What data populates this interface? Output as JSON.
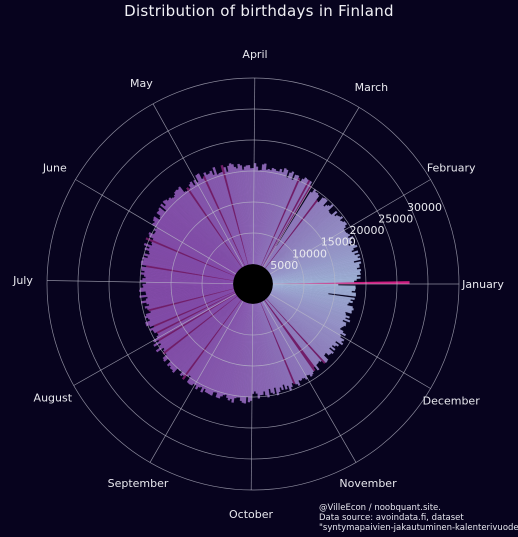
{
  "chart_data": {
    "type": "polar-bar",
    "title": "Distribution of birthdays in Finland",
    "radial_ticks": [
      5000,
      10000,
      15000,
      20000,
      25000,
      30000
    ],
    "rlim": [
      0,
      30000
    ],
    "months": [
      "January",
      "February",
      "March",
      "April",
      "May",
      "June",
      "July",
      "August",
      "September",
      "October",
      "November",
      "December"
    ],
    "direction": "counter-clockwise, January at 0°",
    "grid": true,
    "monthly_typical_count": [
      14000,
      14200,
      15500,
      16000,
      15800,
      14800,
      14500,
      15300,
      15800,
      14400,
      13600,
      13000
    ],
    "notable_days": [
      {
        "day": "January 1",
        "count": 22000
      },
      {
        "day": "December 31",
        "count": 10500
      },
      {
        "day": "December 24",
        "count": 9000
      },
      {
        "day": "February 29",
        "count": 4000
      }
    ],
    "colors": {
      "background": "#07031e",
      "grid": "#b9b9c8",
      "bar_early_year": "#a7bde0",
      "bar_mid_year": "#8a4fb0",
      "bar_highlight": "#7a1f6e",
      "january_first": "#e0208a"
    }
  },
  "credit": {
    "line1": "@VilleEcon / noobquant.site.",
    "line2": "Data source: avoindata.fi, dataset",
    "line3": "\"syntymapaivien-jakautuminen-kalenterivuodelle\""
  }
}
